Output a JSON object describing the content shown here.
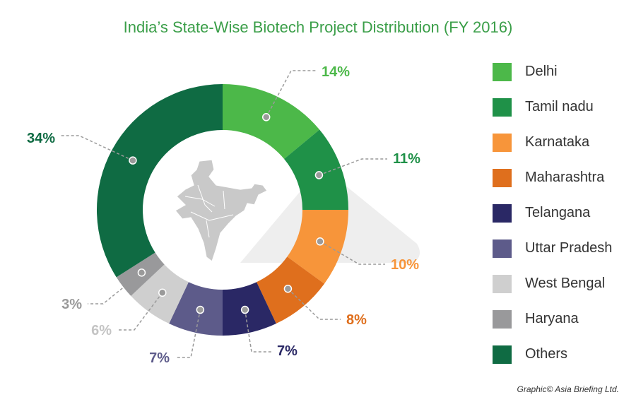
{
  "chart_data": {
    "type": "pie",
    "title": "India’s State-Wise Biotech Project Distribution (FY 2016)",
    "slices": [
      {
        "name": "Delhi",
        "value": 14,
        "label": "14%",
        "color": "#4cb849"
      },
      {
        "name": "Tamil nadu",
        "value": 11,
        "label": "11%",
        "color": "#1f9148"
      },
      {
        "name": "Karnataka",
        "value": 10,
        "label": "10%",
        "color": "#f7953a"
      },
      {
        "name": "Maharashtra",
        "value": 8,
        "label": "8%",
        "color": "#df6f1d"
      },
      {
        "name": "Telangana",
        "value": 7,
        "label": "7%",
        "color": "#2a2865"
      },
      {
        "name": "Uttar Pradesh",
        "value": 7,
        "label": "7%",
        "color": "#5d5b8a"
      },
      {
        "name": "West Bengal",
        "value": 6,
        "label": "6%",
        "color": "#cfcfcf"
      },
      {
        "name": "Haryana",
        "value": 3,
        "label": "3%",
        "color": "#99999b"
      },
      {
        "name": "Others",
        "value": 34,
        "label": "34%",
        "color": "#0f6b43"
      }
    ],
    "legend_position": "right"
  },
  "credit": "Graphic© Asia Briefing Ltd."
}
